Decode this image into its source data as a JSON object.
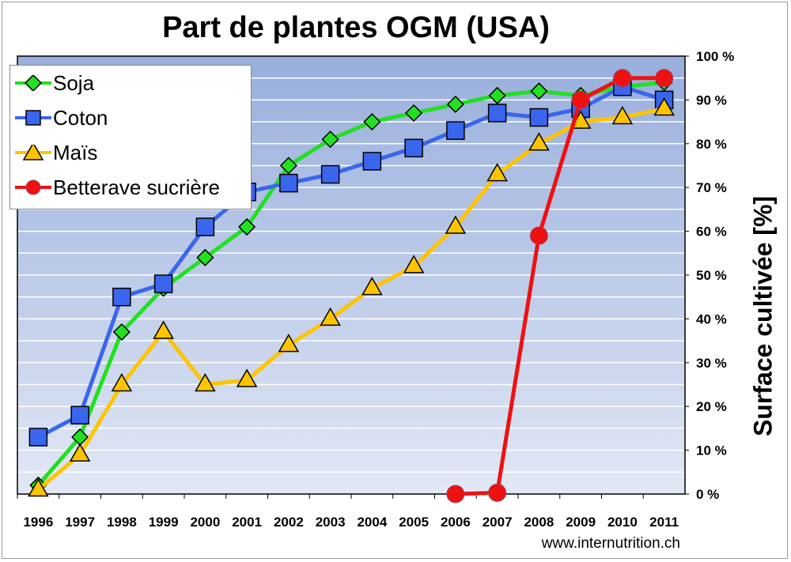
{
  "chart_data": {
    "type": "line",
    "title": "Part de plantes OGM (USA)",
    "xlabel": "",
    "ylabel": "Surface cultivée [%]",
    "ylim": [
      0,
      100
    ],
    "y_ticks": [
      "0 %",
      "10 %",
      "20 %",
      "30 %",
      "40 %",
      "50 %",
      "60 %",
      "70 %",
      "80 %",
      "90 %",
      "100 %"
    ],
    "y_axis_side": "right",
    "grid": "horizontal every 5 %",
    "legend_position": "top-left",
    "categories": [
      "1996",
      "1997",
      "1998",
      "1999",
      "2000",
      "2001",
      "2002",
      "2003",
      "2004",
      "2005",
      "2006",
      "2007",
      "2008",
      "2009",
      "2010",
      "2011"
    ],
    "series": [
      {
        "name": "Soja",
        "color": "#22e022",
        "marker": "diamond",
        "values": [
          2,
          13,
          37,
          47,
          54,
          61,
          75,
          81,
          85,
          87,
          89,
          91,
          92,
          91,
          93,
          94
        ]
      },
      {
        "name": "Coton",
        "color": "#3a66ee",
        "marker": "square",
        "values": [
          13,
          18,
          45,
          48,
          61,
          69,
          71,
          73,
          76,
          79,
          83,
          87,
          86,
          88,
          93,
          90
        ]
      },
      {
        "name": "Maïs",
        "color": "#ffc400",
        "marker": "triangle",
        "values": [
          1,
          9,
          25,
          37,
          25,
          26,
          34,
          40,
          47,
          52,
          61,
          73,
          80,
          85,
          86,
          88
        ]
      },
      {
        "name": "Betterave sucrière",
        "color": "#ee1111",
        "marker": "circle",
        "values": [
          null,
          null,
          null,
          null,
          null,
          null,
          null,
          null,
          null,
          null,
          0,
          0.3,
          59,
          90,
          95,
          95
        ]
      }
    ]
  },
  "footer": "www.internutrition.ch",
  "colors": {
    "plot_bg_top": "#98aedc",
    "plot_bg_bottom": "#e2e8f5"
  }
}
